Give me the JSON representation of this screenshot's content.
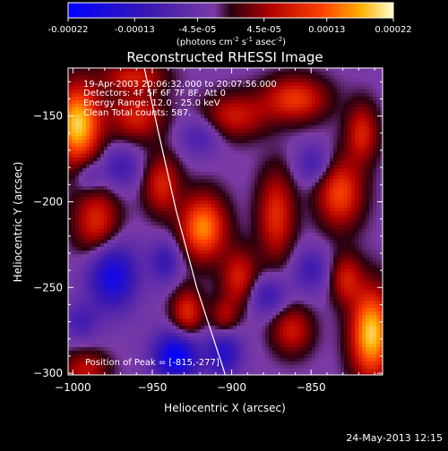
{
  "colorbar": {
    "tick_labels": [
      "-0.00022",
      "-0.00013",
      "-4.5e-05",
      "4.5e-05",
      "0.00013",
      "0.00022"
    ],
    "tick_values": [
      -0.00022,
      -0.00013,
      -4.5e-05,
      4.5e-05,
      0.00013,
      0.00022
    ],
    "range": [
      -0.00022,
      0.00022
    ],
    "unit_label": "(photons cm",
    "unit_sup1": "-2",
    "unit_mid": " s",
    "unit_sup2": "-1",
    "unit_mid2": " asec",
    "unit_sup3": "-2",
    "unit_end": ")"
  },
  "chart_data": {
    "type": "heatmap",
    "title": "Reconstructed RHESSI Image",
    "xlabel": "Heliocentric X (arcsec)",
    "ylabel": "Heliocentric Y (arcsec)",
    "xlim": [
      -1003,
      -805
    ],
    "ylim": [
      -301,
      -122
    ],
    "x_ticks": [
      -1000,
      -950,
      -900,
      -850
    ],
    "x_tick_labels": [
      "−1000",
      "−950",
      "−900",
      "−850"
    ],
    "y_ticks": [
      -150,
      -200,
      -250,
      -300
    ],
    "y_tick_labels": [
      "−150",
      "−200",
      "−250",
      "−300"
    ],
    "annotations": [
      "19-Apr-2003 20:06:32.000 to 20:07:56.000",
      "Detectors: 4F 5F 6F 7F 8F, Att 0",
      "Energy Range: 12.0 - 25.0 keV",
      "Clean    Total counts: 587."
    ],
    "peak_label": "Position of Peak = [-815,-277]",
    "peak": [
      -815,
      -277
    ],
    "limb_curve": [
      [
        -955,
        -122
      ],
      [
        -946,
        -160
      ],
      [
        -935,
        -205
      ],
      [
        -922,
        -250
      ],
      [
        -904,
        -301
      ]
    ],
    "blobs": [
      {
        "x": -997,
        "y": -155,
        "v": 0.00022,
        "sx": 10,
        "sy": 16
      },
      {
        "x": -960,
        "y": -150,
        "v": 0.00011,
        "sx": 12,
        "sy": 10
      },
      {
        "x": -962,
        "y": -127,
        "v": 0.0001,
        "sx": 14,
        "sy": 6
      },
      {
        "x": -985,
        "y": -212,
        "v": 0.00012,
        "sx": 10,
        "sy": 14
      },
      {
        "x": -992,
        "y": -298,
        "v": 9e-05,
        "sx": 10,
        "sy": 8
      },
      {
        "x": -944,
        "y": -190,
        "v": 0.00011,
        "sx": 8,
        "sy": 12
      },
      {
        "x": -918,
        "y": -215,
        "v": 0.00018,
        "sx": 10,
        "sy": 13
      },
      {
        "x": -928,
        "y": -265,
        "v": 0.00012,
        "sx": 7,
        "sy": 10
      },
      {
        "x": -898,
        "y": -150,
        "v": 0.0001,
        "sx": 14,
        "sy": 9
      },
      {
        "x": -895,
        "y": -245,
        "v": 0.00011,
        "sx": 8,
        "sy": 12
      },
      {
        "x": -905,
        "y": -268,
        "v": 8e-05,
        "sx": 6,
        "sy": 8
      },
      {
        "x": -872,
        "y": -208,
        "v": 0.00012,
        "sx": 8,
        "sy": 18
      },
      {
        "x": -860,
        "y": -140,
        "v": 0.00013,
        "sx": 14,
        "sy": 9
      },
      {
        "x": -862,
        "y": -275,
        "v": 0.0001,
        "sx": 9,
        "sy": 10
      },
      {
        "x": -832,
        "y": -195,
        "v": 0.00014,
        "sx": 10,
        "sy": 14
      },
      {
        "x": -818,
        "y": -160,
        "v": 0.00011,
        "sx": 7,
        "sy": 12
      },
      {
        "x": -812,
        "y": -277,
        "v": 0.00022,
        "sx": 9,
        "sy": 18
      },
      {
        "x": -828,
        "y": -245,
        "v": 0.0001,
        "sx": 7,
        "sy": 10
      },
      {
        "x": -975,
        "y": -243,
        "v": -0.00016,
        "sx": 11,
        "sy": 14
      },
      {
        "x": -970,
        "y": -180,
        "v": -8e-05,
        "sx": 9,
        "sy": 9
      },
      {
        "x": -990,
        "y": -185,
        "v": -6e-05,
        "sx": 6,
        "sy": 7
      },
      {
        "x": -942,
        "y": -235,
        "v": -9e-05,
        "sx": 7,
        "sy": 9
      },
      {
        "x": -935,
        "y": -290,
        "v": -0.00019,
        "sx": 10,
        "sy": 10
      },
      {
        "x": -905,
        "y": -288,
        "v": -0.00012,
        "sx": 8,
        "sy": 10
      },
      {
        "x": -878,
        "y": -255,
        "v": -9e-05,
        "sx": 9,
        "sy": 8
      },
      {
        "x": -848,
        "y": -178,
        "v": -8e-05,
        "sx": 8,
        "sy": 8
      },
      {
        "x": -850,
        "y": -240,
        "v": -8e-05,
        "sx": 8,
        "sy": 9
      },
      {
        "x": -920,
        "y": -162,
        "v": -7e-05,
        "sx": 9,
        "sy": 8
      },
      {
        "x": -995,
        "y": -270,
        "v": -7e-05,
        "sx": 8,
        "sy": 8
      }
    ]
  },
  "footer": {
    "timestamp": "24-May-2013 12:15"
  }
}
